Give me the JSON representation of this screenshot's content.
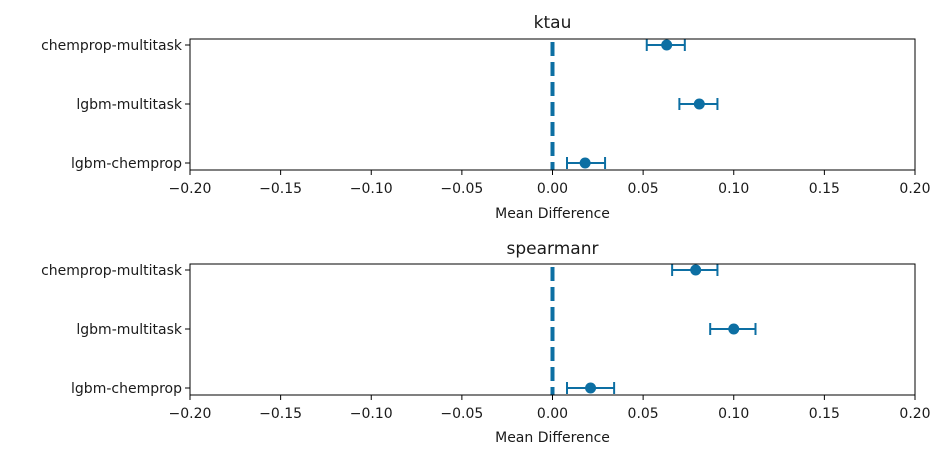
{
  "chart_data": [
    {
      "type": "scatter",
      "title": "ktau",
      "xlabel": "Mean Difference",
      "ylabel": "",
      "xlim": [
        -0.2,
        0.2
      ],
      "xticks": [
        -0.2,
        -0.15,
        -0.1,
        -0.05,
        0.0,
        0.05,
        0.1,
        0.15,
        0.2
      ],
      "xtick_labels": [
        "−0.20",
        "−0.15",
        "−0.10",
        "−0.05",
        "0.00",
        "0.05",
        "0.10",
        "0.15",
        "0.20"
      ],
      "categories": [
        "chemprop-multitask",
        "lgbm-multitask",
        "lgbm-chemprop"
      ],
      "values": [
        0.063,
        0.081,
        0.018
      ],
      "ci_low": [
        0.052,
        0.07,
        0.008
      ],
      "ci_high": [
        0.073,
        0.091,
        0.029
      ],
      "reference_line": 0.0,
      "color": "#0d6fa3"
    },
    {
      "type": "scatter",
      "title": "spearmanr",
      "xlabel": "Mean Difference",
      "ylabel": "",
      "xlim": [
        -0.2,
        0.2
      ],
      "xticks": [
        -0.2,
        -0.15,
        -0.1,
        -0.05,
        0.0,
        0.05,
        0.1,
        0.15,
        0.2
      ],
      "xtick_labels": [
        "−0.20",
        "−0.15",
        "−0.10",
        "−0.05",
        "0.00",
        "0.05",
        "0.10",
        "0.15",
        "0.20"
      ],
      "categories": [
        "chemprop-multitask",
        "lgbm-multitask",
        "lgbm-chemprop"
      ],
      "values": [
        0.079,
        0.1,
        0.021
      ],
      "ci_low": [
        0.066,
        0.087,
        0.008
      ],
      "ci_high": [
        0.091,
        0.112,
        0.034
      ],
      "reference_line": 0.0,
      "color": "#0d6fa3"
    }
  ]
}
